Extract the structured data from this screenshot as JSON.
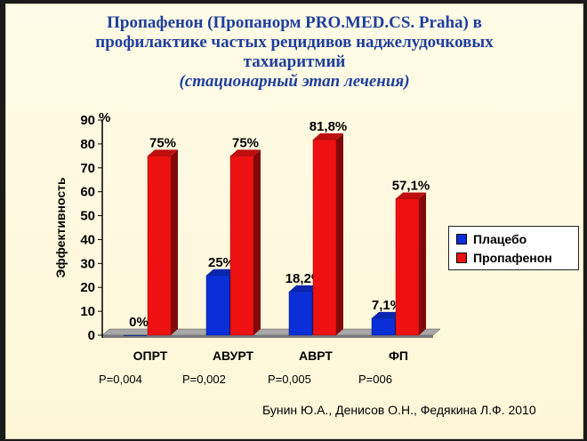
{
  "title": {
    "line1": "Пропафенон (Пропанорм PRO.MED.CS. Praha) в",
    "line2": "профилактике частых рецидивов наджелудочковых",
    "line3": "тахиаритмий",
    "line4": "(стационарный этап лечения)"
  },
  "chart_data": {
    "type": "bar",
    "categories": [
      "ОПРТ",
      "АВУРТ",
      "АВРТ",
      "ФП"
    ],
    "series": [
      {
        "name": "Плацебо",
        "values": [
          0,
          25,
          18.2,
          7.1
        ],
        "labels": [
          "0%",
          "25%",
          "18,2%",
          "7,1%"
        ],
        "color": "#0a2fd8"
      },
      {
        "name": "Пропафенон",
        "values": [
          75,
          75,
          81.8,
          57.1
        ],
        "labels": [
          "75%",
          "75%",
          "81,8%",
          "57,1%"
        ],
        "color": "#ee1111"
      }
    ],
    "ylabel": "Эффективность",
    "yunit": "%",
    "ylim": [
      0,
      90
    ],
    "yticks": [
      0,
      10,
      20,
      30,
      40,
      50,
      60,
      70,
      80,
      90
    ],
    "grid": false,
    "legend": "right",
    "style": "3d"
  },
  "pvalues": [
    "P=0,004",
    "P=0,002",
    "P=0,005",
    "P=006"
  ],
  "citation": "Бунин Ю.А., Денисов О.Н., Федякина Л.Ф. 2010"
}
